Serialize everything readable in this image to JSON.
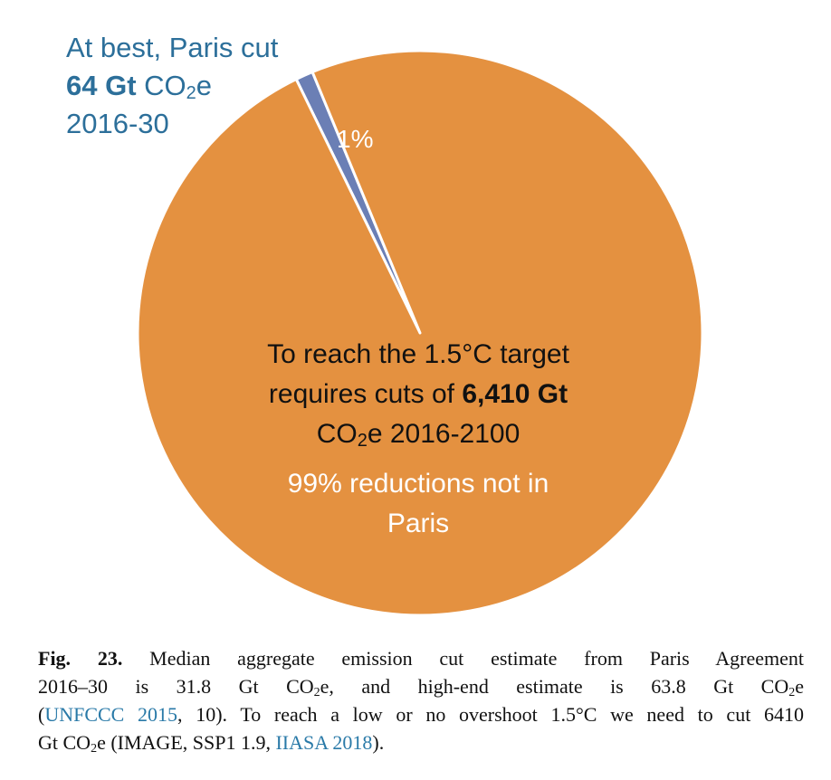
{
  "chart_data": {
    "type": "pie",
    "slices": [
      {
        "name": "At best, Paris cut 64 Gt CO2e 2016-30",
        "value": 1,
        "label": "1%",
        "color": "#6b7fb5"
      },
      {
        "name": "99% reductions not in Paris",
        "value": 99,
        "label": "99%",
        "color": "#e49140"
      }
    ],
    "start_angle_deg": -26,
    "separator_color": "#ffffff"
  },
  "callout": {
    "line1": "At best, Paris cut",
    "line2_bold": "64 Gt",
    "line2_rest": "CO",
    "line2_sub": "2",
    "line2_end": "e",
    "line3": "2016-30"
  },
  "small_label": "1%",
  "center": {
    "line1": "To reach the 1.5°C target",
    "line2_pre": "requires cuts of",
    "line2_bold": "6,410 Gt",
    "line3_pre": "CO",
    "line3_sub": "2",
    "line3_post": "e 2016-2100",
    "sub_line1": "99% reductions not in",
    "sub_line2": "Paris"
  },
  "caption": {
    "fig_label": "Fig. 23.",
    "l1": "Median aggregate emission cut estimate from Paris Agreement",
    "l2_a": "2016–30 is 31.8 Gt CO",
    "l2_sub1": "2",
    "l2_b": "e, and high-end estimate is 63.8 Gt CO",
    "l2_sub2": "2",
    "l2_c": "e",
    "l3_a": "(",
    "l3_link": "UNFCCC 2015",
    "l3_b": ", 10). To reach a low or no overshoot 1.5°C we need to cut 6410",
    "l4_a": "Gt CO",
    "l4_sub": "2",
    "l4_b": "e (IMAGE, SSP1 1.9, ",
    "l4_link": "IIASA 2018",
    "l4_c": ")."
  }
}
